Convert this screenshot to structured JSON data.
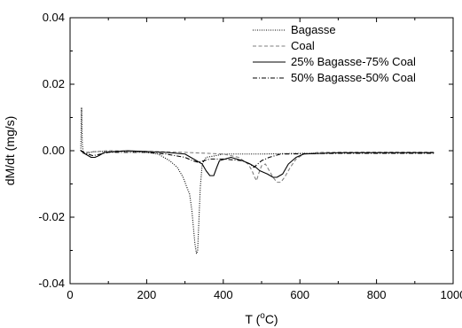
{
  "chart_data": {
    "type": "line",
    "xlabel": "T (",
    "xlabel_sup": "o",
    "xlabel_suffix": "C)",
    "ylabel": "dM/dt (mg/s)",
    "xlim": [
      0,
      1000
    ],
    "ylim": [
      -0.04,
      0.04
    ],
    "x_ticks": [
      "0",
      "200",
      "400",
      "600",
      "800",
      "1000"
    ],
    "y_ticks": [
      "-0.04",
      "-0.02",
      "0.00",
      "0.02",
      "0.04"
    ],
    "grid": false,
    "legend_position": "top-right",
    "series": [
      {
        "name": "Bagasse",
        "style": "dotted",
        "color": "#000000",
        "points": [
          [
            28,
            0
          ],
          [
            30,
            0.013
          ],
          [
            32,
            0.002
          ],
          [
            35,
            -0.001
          ],
          [
            60,
            -0.0003
          ],
          [
            100,
            -0.0002
          ],
          [
            150,
            -0.0002
          ],
          [
            200,
            -0.0005
          ],
          [
            230,
            -0.001
          ],
          [
            260,
            -0.003
          ],
          [
            280,
            -0.005
          ],
          [
            295,
            -0.008
          ],
          [
            305,
            -0.011
          ],
          [
            312,
            -0.013
          ],
          [
            318,
            -0.018
          ],
          [
            322,
            -0.023
          ],
          [
            326,
            -0.028
          ],
          [
            330,
            -0.031
          ],
          [
            333,
            -0.03
          ],
          [
            336,
            -0.022
          ],
          [
            340,
            -0.011
          ],
          [
            345,
            -0.004
          ],
          [
            355,
            -0.002
          ],
          [
            380,
            -0.0015
          ],
          [
            400,
            -0.001
          ],
          [
            500,
            -0.001
          ],
          [
            600,
            -0.0008
          ],
          [
            800,
            -0.0006
          ],
          [
            950,
            -0.0006
          ]
        ]
      },
      {
        "name": "Coal",
        "style": "dashed",
        "color": "#7f7f7f",
        "points": [
          [
            28,
            0
          ],
          [
            40,
            -0.0005
          ],
          [
            100,
            0
          ],
          [
            200,
            -0.0002
          ],
          [
            300,
            -0.0005
          ],
          [
            400,
            -0.001
          ],
          [
            440,
            -0.002
          ],
          [
            465,
            -0.004
          ],
          [
            475,
            -0.006
          ],
          [
            482,
            -0.008
          ],
          [
            487,
            -0.009
          ],
          [
            492,
            -0.007
          ],
          [
            500,
            -0.0045
          ],
          [
            510,
            -0.004
          ],
          [
            520,
            -0.006
          ],
          [
            530,
            -0.008
          ],
          [
            540,
            -0.0095
          ],
          [
            550,
            -0.0095
          ],
          [
            560,
            -0.008
          ],
          [
            575,
            -0.005
          ],
          [
            590,
            -0.0025
          ],
          [
            610,
            -0.001
          ],
          [
            650,
            -0.0005
          ],
          [
            800,
            -0.0004
          ],
          [
            950,
            -0.0004
          ]
        ]
      },
      {
        "name": "25% Bagasse-75% Coal",
        "style": "solid",
        "color": "#000000",
        "points": [
          [
            28,
            0
          ],
          [
            40,
            -0.001
          ],
          [
            55,
            -0.002
          ],
          [
            65,
            -0.002
          ],
          [
            75,
            -0.0015
          ],
          [
            90,
            -0.0005
          ],
          [
            150,
            0
          ],
          [
            250,
            -0.0005
          ],
          [
            300,
            -0.001
          ],
          [
            330,
            -0.003
          ],
          [
            345,
            -0.004
          ],
          [
            355,
            -0.006
          ],
          [
            365,
            -0.0075
          ],
          [
            375,
            -0.0075
          ],
          [
            383,
            -0.005
          ],
          [
            390,
            -0.003
          ],
          [
            420,
            -0.002
          ],
          [
            450,
            -0.003
          ],
          [
            470,
            -0.004
          ],
          [
            485,
            -0.005
          ],
          [
            495,
            -0.006
          ],
          [
            515,
            -0.007
          ],
          [
            530,
            -0.008
          ],
          [
            540,
            -0.008
          ],
          [
            555,
            -0.007
          ],
          [
            570,
            -0.004
          ],
          [
            590,
            -0.002
          ],
          [
            610,
            -0.001
          ],
          [
            700,
            -0.0006
          ],
          [
            950,
            -0.0006
          ]
        ]
      },
      {
        "name": "50% Bagasse-50% Coal",
        "style": "dashdot",
        "color": "#000000",
        "points": [
          [
            28,
            0
          ],
          [
            40,
            -0.0008
          ],
          [
            60,
            -0.0015
          ],
          [
            80,
            -0.001
          ],
          [
            100,
            -0.0005
          ],
          [
            200,
            -0.0005
          ],
          [
            250,
            -0.001
          ],
          [
            300,
            -0.002
          ],
          [
            320,
            -0.003
          ],
          [
            335,
            -0.0035
          ],
          [
            350,
            -0.003
          ],
          [
            365,
            -0.0025
          ],
          [
            400,
            -0.0025
          ],
          [
            450,
            -0.003
          ],
          [
            470,
            -0.004
          ],
          [
            480,
            -0.005
          ],
          [
            490,
            -0.004
          ],
          [
            500,
            -0.003
          ],
          [
            520,
            -0.002
          ],
          [
            550,
            -0.001
          ],
          [
            700,
            -0.0008
          ],
          [
            950,
            -0.0008
          ]
        ]
      }
    ]
  }
}
